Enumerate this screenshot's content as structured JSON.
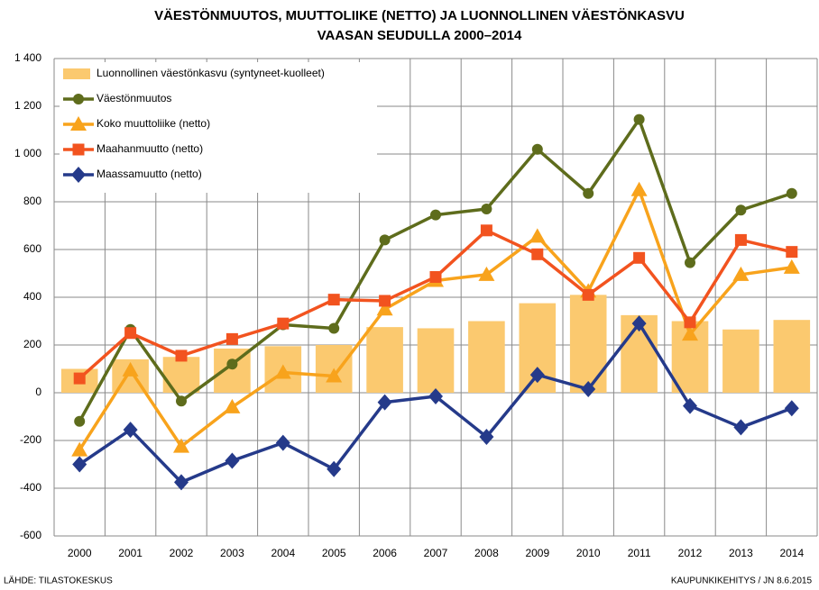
{
  "chart_data": {
    "type": "combo",
    "title": "VÄESTÖNMUUTOS, MUUTTOLIIKE (NETTO) JA LUONNOLLINEN VÄESTÖNKASVU",
    "subtitle": "VAASAN SEUDULLA 2000–2014",
    "source": "LÄHDE: TILASTOKESKUS",
    "credit": "KAUPUNKIKEHITYS / JN 8.6.2015",
    "categories": [
      "2000",
      "2001",
      "2002",
      "2003",
      "2004",
      "2005",
      "2006",
      "2007",
      "2008",
      "2009",
      "2010",
      "2011",
      "2012",
      "2013",
      "2014"
    ],
    "ylim": [
      -600,
      1400
    ],
    "yticks": [
      -600,
      -400,
      -200,
      0,
      200,
      400,
      600,
      800,
      {
        "value": 1000,
        "label": "1 000"
      },
      {
        "value": 1200,
        "label": "1 200"
      },
      {
        "value": 1400,
        "label": "1 400"
      }
    ],
    "grid": true,
    "legend": "top-left",
    "series": [
      {
        "name": "Luonnollinen väestönkasvu (syntyneet-kuolleet)",
        "kind": "bar",
        "color": "#fbc96f",
        "values": [
          100,
          140,
          150,
          185,
          195,
          200,
          275,
          270,
          300,
          375,
          410,
          325,
          300,
          265,
          305
        ]
      },
      {
        "name": "Väestönmuutos",
        "kind": "line",
        "marker": "circle",
        "color": "#5e6c1c",
        "values": [
          -120,
          265,
          -35,
          120,
          285,
          270,
          640,
          745,
          770,
          1020,
          835,
          1145,
          545,
          765,
          835
        ]
      },
      {
        "name": "Koko muuttoliike (netto)",
        "kind": "line",
        "marker": "triangle",
        "color": "#f8a31c",
        "values": [
          -240,
          95,
          -225,
          -60,
          85,
          70,
          350,
          470,
          495,
          655,
          425,
          850,
          245,
          495,
          525
        ]
      },
      {
        "name": "Maahanmuutto (netto)",
        "kind": "line",
        "marker": "square",
        "color": "#f2531f",
        "values": [
          60,
          250,
          155,
          225,
          290,
          390,
          385,
          485,
          680,
          580,
          410,
          565,
          295,
          640,
          590
        ]
      },
      {
        "name": "Maassamuutto (netto)",
        "kind": "line",
        "marker": "diamond",
        "color": "#253a8a",
        "values": [
          -300,
          -155,
          -375,
          -285,
          -210,
          -320,
          -40,
          -15,
          -185,
          75,
          15,
          290,
          -55,
          -145,
          -65
        ]
      }
    ]
  }
}
